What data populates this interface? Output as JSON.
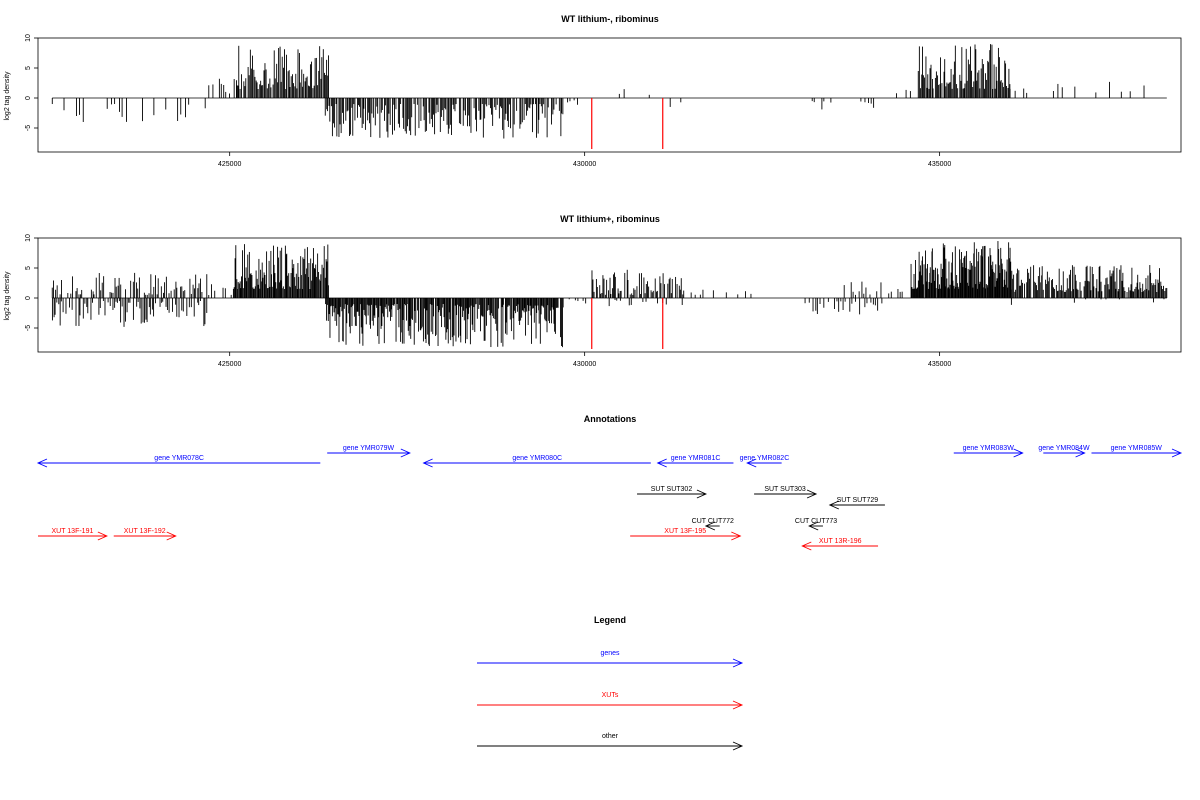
{
  "chart_data": [
    {
      "type": "bar",
      "title": "WT lithium-, ribominus",
      "ylabel": "log2 tag density",
      "xlabel": "",
      "xlim": [
        422300,
        438400
      ],
      "ylim": [
        -9,
        10
      ],
      "yticks": [
        -5,
        0,
        5,
        10
      ],
      "xticks": [
        425000,
        430000,
        435000
      ],
      "grid": false,
      "bar_color": "#000000",
      "highlight_color": "#ff0000",
      "density_segments": [
        {
          "x0": 422500,
          "x1": 424700,
          "sign": -1,
          "min": 1.0,
          "max": 4.2,
          "step": 55,
          "fill": 0.4
        },
        {
          "x0": 424700,
          "x1": 424850,
          "sign": 1,
          "min": 1.0,
          "max": 2.5,
          "step": 60,
          "fill": 0.6
        },
        {
          "x0": 424850,
          "x1": 425100,
          "sign": 1,
          "min": 0.5,
          "max": 4.5,
          "step": 30,
          "fill": 0.5
        },
        {
          "x0": 425100,
          "x1": 426400,
          "sign": 1,
          "min": 1.5,
          "max": 8.7,
          "step": 16,
          "fill": 0.95
        },
        {
          "x0": 426350,
          "x1": 429700,
          "sign": -1,
          "min": 1.0,
          "max": 6.8,
          "step": 16,
          "fill": 0.85
        },
        {
          "x0": 429700,
          "x1": 430000,
          "sign": -1,
          "min": 0.2,
          "max": 1.2,
          "step": 50,
          "fill": 0.4
        },
        {
          "x0": 430200,
          "x1": 430900,
          "sign": 1,
          "min": 0.5,
          "max": 3.0,
          "step": 50,
          "fill": 0.35
        },
        {
          "x0": 431100,
          "x1": 431500,
          "sign": -1,
          "min": 0.5,
          "max": 2.0,
          "step": 90,
          "fill": 0.3
        },
        {
          "x0": 433200,
          "x1": 433600,
          "sign": -1,
          "min": 0.5,
          "max": 2.0,
          "step": 45,
          "fill": 0.5
        },
        {
          "x0": 433900,
          "x1": 434100,
          "sign": -1,
          "min": 0.5,
          "max": 2.6,
          "step": 45,
          "fill": 0.6
        },
        {
          "x0": 434400,
          "x1": 434600,
          "sign": 1,
          "min": 0.5,
          "max": 2.5,
          "step": 60,
          "fill": 0.5
        },
        {
          "x0": 434700,
          "x1": 436000,
          "sign": 1,
          "min": 1.5,
          "max": 9.0,
          "step": 15,
          "fill": 0.95
        },
        {
          "x0": 436000,
          "x1": 436600,
          "sign": 1,
          "min": 0.5,
          "max": 2.8,
          "step": 60,
          "fill": 0.45
        },
        {
          "x0": 436600,
          "x1": 437700,
          "sign": 1,
          "min": 0.8,
          "max": 3.0,
          "step": 60,
          "fill": 0.35
        },
        {
          "x0": 437700,
          "x1": 437900,
          "sign": 1,
          "min": 1.0,
          "max": 3.0,
          "step": 90,
          "fill": 0.5
        }
      ],
      "highlights": [
        {
          "x": 430100,
          "y": -8.5
        },
        {
          "x": 431100,
          "y": -8.5
        }
      ]
    },
    {
      "type": "bar",
      "title": "WT lithium+, ribominus",
      "ylabel": "log2 tag density",
      "xlabel": "",
      "xlim": [
        422300,
        438400
      ],
      "ylim": [
        -9,
        10
      ],
      "yticks": [
        -5,
        0,
        5,
        10
      ],
      "xticks": [
        425000,
        430000,
        435000
      ],
      "grid": false,
      "bar_color": "#000000",
      "highlight_color": "#ff0000",
      "density_segments": [
        {
          "x0": 422500,
          "x1": 424700,
          "sign": 1,
          "min": 0.5,
          "max": 4.3,
          "step": 22,
          "fill": 0.7
        },
        {
          "x0": 422500,
          "x1": 424700,
          "sign": -1,
          "min": 0.5,
          "max": 5.0,
          "step": 22,
          "fill": 0.7
        },
        {
          "x0": 424700,
          "x1": 425050,
          "sign": 1,
          "min": 0.5,
          "max": 2.5,
          "step": 40,
          "fill": 0.5
        },
        {
          "x0": 425050,
          "x1": 426400,
          "sign": 1,
          "min": 1.5,
          "max": 9.0,
          "step": 12,
          "fill": 0.98
        },
        {
          "x0": 426350,
          "x1": 429700,
          "sign": -1,
          "min": 1.0,
          "max": 8.2,
          "step": 12,
          "fill": 0.95
        },
        {
          "x0": 429700,
          "x1": 430050,
          "sign": -1,
          "min": 0.2,
          "max": 1.5,
          "step": 40,
          "fill": 0.5
        },
        {
          "x0": 430100,
          "x1": 431400,
          "sign": 1,
          "min": 0.5,
          "max": 4.8,
          "step": 16,
          "fill": 0.85
        },
        {
          "x0": 430100,
          "x1": 431400,
          "sign": -1,
          "min": 0.3,
          "max": 1.5,
          "step": 40,
          "fill": 0.4
        },
        {
          "x0": 431500,
          "x1": 431800,
          "sign": 1,
          "min": 0.5,
          "max": 1.5,
          "step": 60,
          "fill": 0.4
        },
        {
          "x0": 431900,
          "x1": 432500,
          "sign": 1,
          "min": 0.5,
          "max": 1.2,
          "step": 90,
          "fill": 0.3
        },
        {
          "x0": 433100,
          "x1": 434200,
          "sign": -1,
          "min": 0.5,
          "max": 2.8,
          "step": 30,
          "fill": 0.6
        },
        {
          "x0": 433600,
          "x1": 434600,
          "sign": 1,
          "min": 0.5,
          "max": 2.8,
          "step": 30,
          "fill": 0.6
        },
        {
          "x0": 434600,
          "x1": 436000,
          "sign": 1,
          "min": 1.5,
          "max": 9.5,
          "step": 10,
          "fill": 0.98
        },
        {
          "x0": 436000,
          "x1": 438200,
          "sign": 1,
          "min": 1.0,
          "max": 5.5,
          "step": 14,
          "fill": 0.9
        },
        {
          "x0": 436000,
          "x1": 438200,
          "sign": -1,
          "min": 0.2,
          "max": 1.2,
          "step": 80,
          "fill": 0.25
        }
      ],
      "highlights": [
        {
          "x": 430100,
          "y": -8.5
        },
        {
          "x": 431100,
          "y": -8.5
        }
      ]
    }
  ],
  "annotations": {
    "title": "Annotations",
    "colors": {
      "gene": "#0000ff",
      "xut": "#ff0000",
      "other": "#000000"
    },
    "features": [
      {
        "label": "gene YMR078C",
        "kind": "gene",
        "strand": "-",
        "start": 420600,
        "end": 424700,
        "lane": "minus"
      },
      {
        "label": "gene YMR079W",
        "kind": "gene",
        "strand": "+",
        "start": 424800,
        "end": 426000,
        "lane": "plus"
      },
      {
        "label": "gene YMR080C",
        "kind": "gene",
        "strand": "-",
        "start": 426200,
        "end": 429500,
        "lane": "minus"
      },
      {
        "label": "gene YMR081C",
        "kind": "gene",
        "strand": "-",
        "start": 429600,
        "end": 430700,
        "lane": "minus"
      },
      {
        "label": "gene YMR082C",
        "kind": "gene",
        "strand": "-",
        "start": 430900,
        "end": 431400,
        "lane": "minus"
      },
      {
        "label": "gene YMR083W",
        "kind": "gene",
        "strand": "+",
        "start": 433900,
        "end": 434900,
        "lane": "plus"
      },
      {
        "label": "gene YMR084W",
        "kind": "gene",
        "strand": "+",
        "start": 435200,
        "end": 435800,
        "lane": "plus"
      },
      {
        "label": "gene YMR085W",
        "kind": "gene",
        "strand": "+",
        "start": 435900,
        "end": 437200,
        "lane": "plus"
      },
      {
        "label": "SUT SUT302",
        "kind": "other",
        "strand": "+",
        "start": 429300,
        "end": 430300,
        "lane": "plus2"
      },
      {
        "label": "SUT SUT303",
        "kind": "other",
        "strand": "+",
        "start": 431000,
        "end": 431900,
        "lane": "plus2"
      },
      {
        "label": "SUT SUT729",
        "kind": "other",
        "strand": "-",
        "start": 432100,
        "end": 432900,
        "lane": "minus2"
      },
      {
        "label": "CUT CUT772",
        "kind": "other",
        "strand": "-",
        "start": 430300,
        "end": 430500,
        "lane": "minus3"
      },
      {
        "label": "CUT CUT773",
        "kind": "other",
        "strand": "-",
        "start": 431800,
        "end": 432000,
        "lane": "minus3"
      },
      {
        "label": "XUT 13F-191",
        "kind": "xut",
        "strand": "+",
        "start": 420600,
        "end": 421600,
        "lane": "plus4"
      },
      {
        "label": "XUT 13F-192",
        "kind": "xut",
        "strand": "+",
        "start": 421700,
        "end": 422600,
        "lane": "plus4"
      },
      {
        "label": "XUT 13F-195",
        "kind": "xut",
        "strand": "+",
        "start": 429200,
        "end": 430800,
        "lane": "plus4"
      },
      {
        "label": "XUT 13R-196",
        "kind": "xut",
        "strand": "-",
        "start": 431700,
        "end": 432800,
        "lane": "minus4"
      }
    ]
  },
  "legend": {
    "title": "Legend",
    "items": [
      {
        "label": "genes",
        "color": "#0000ff"
      },
      {
        "label": "XUTs",
        "color": "#ff0000"
      },
      {
        "label": "other",
        "color": "#000000"
      }
    ]
  }
}
